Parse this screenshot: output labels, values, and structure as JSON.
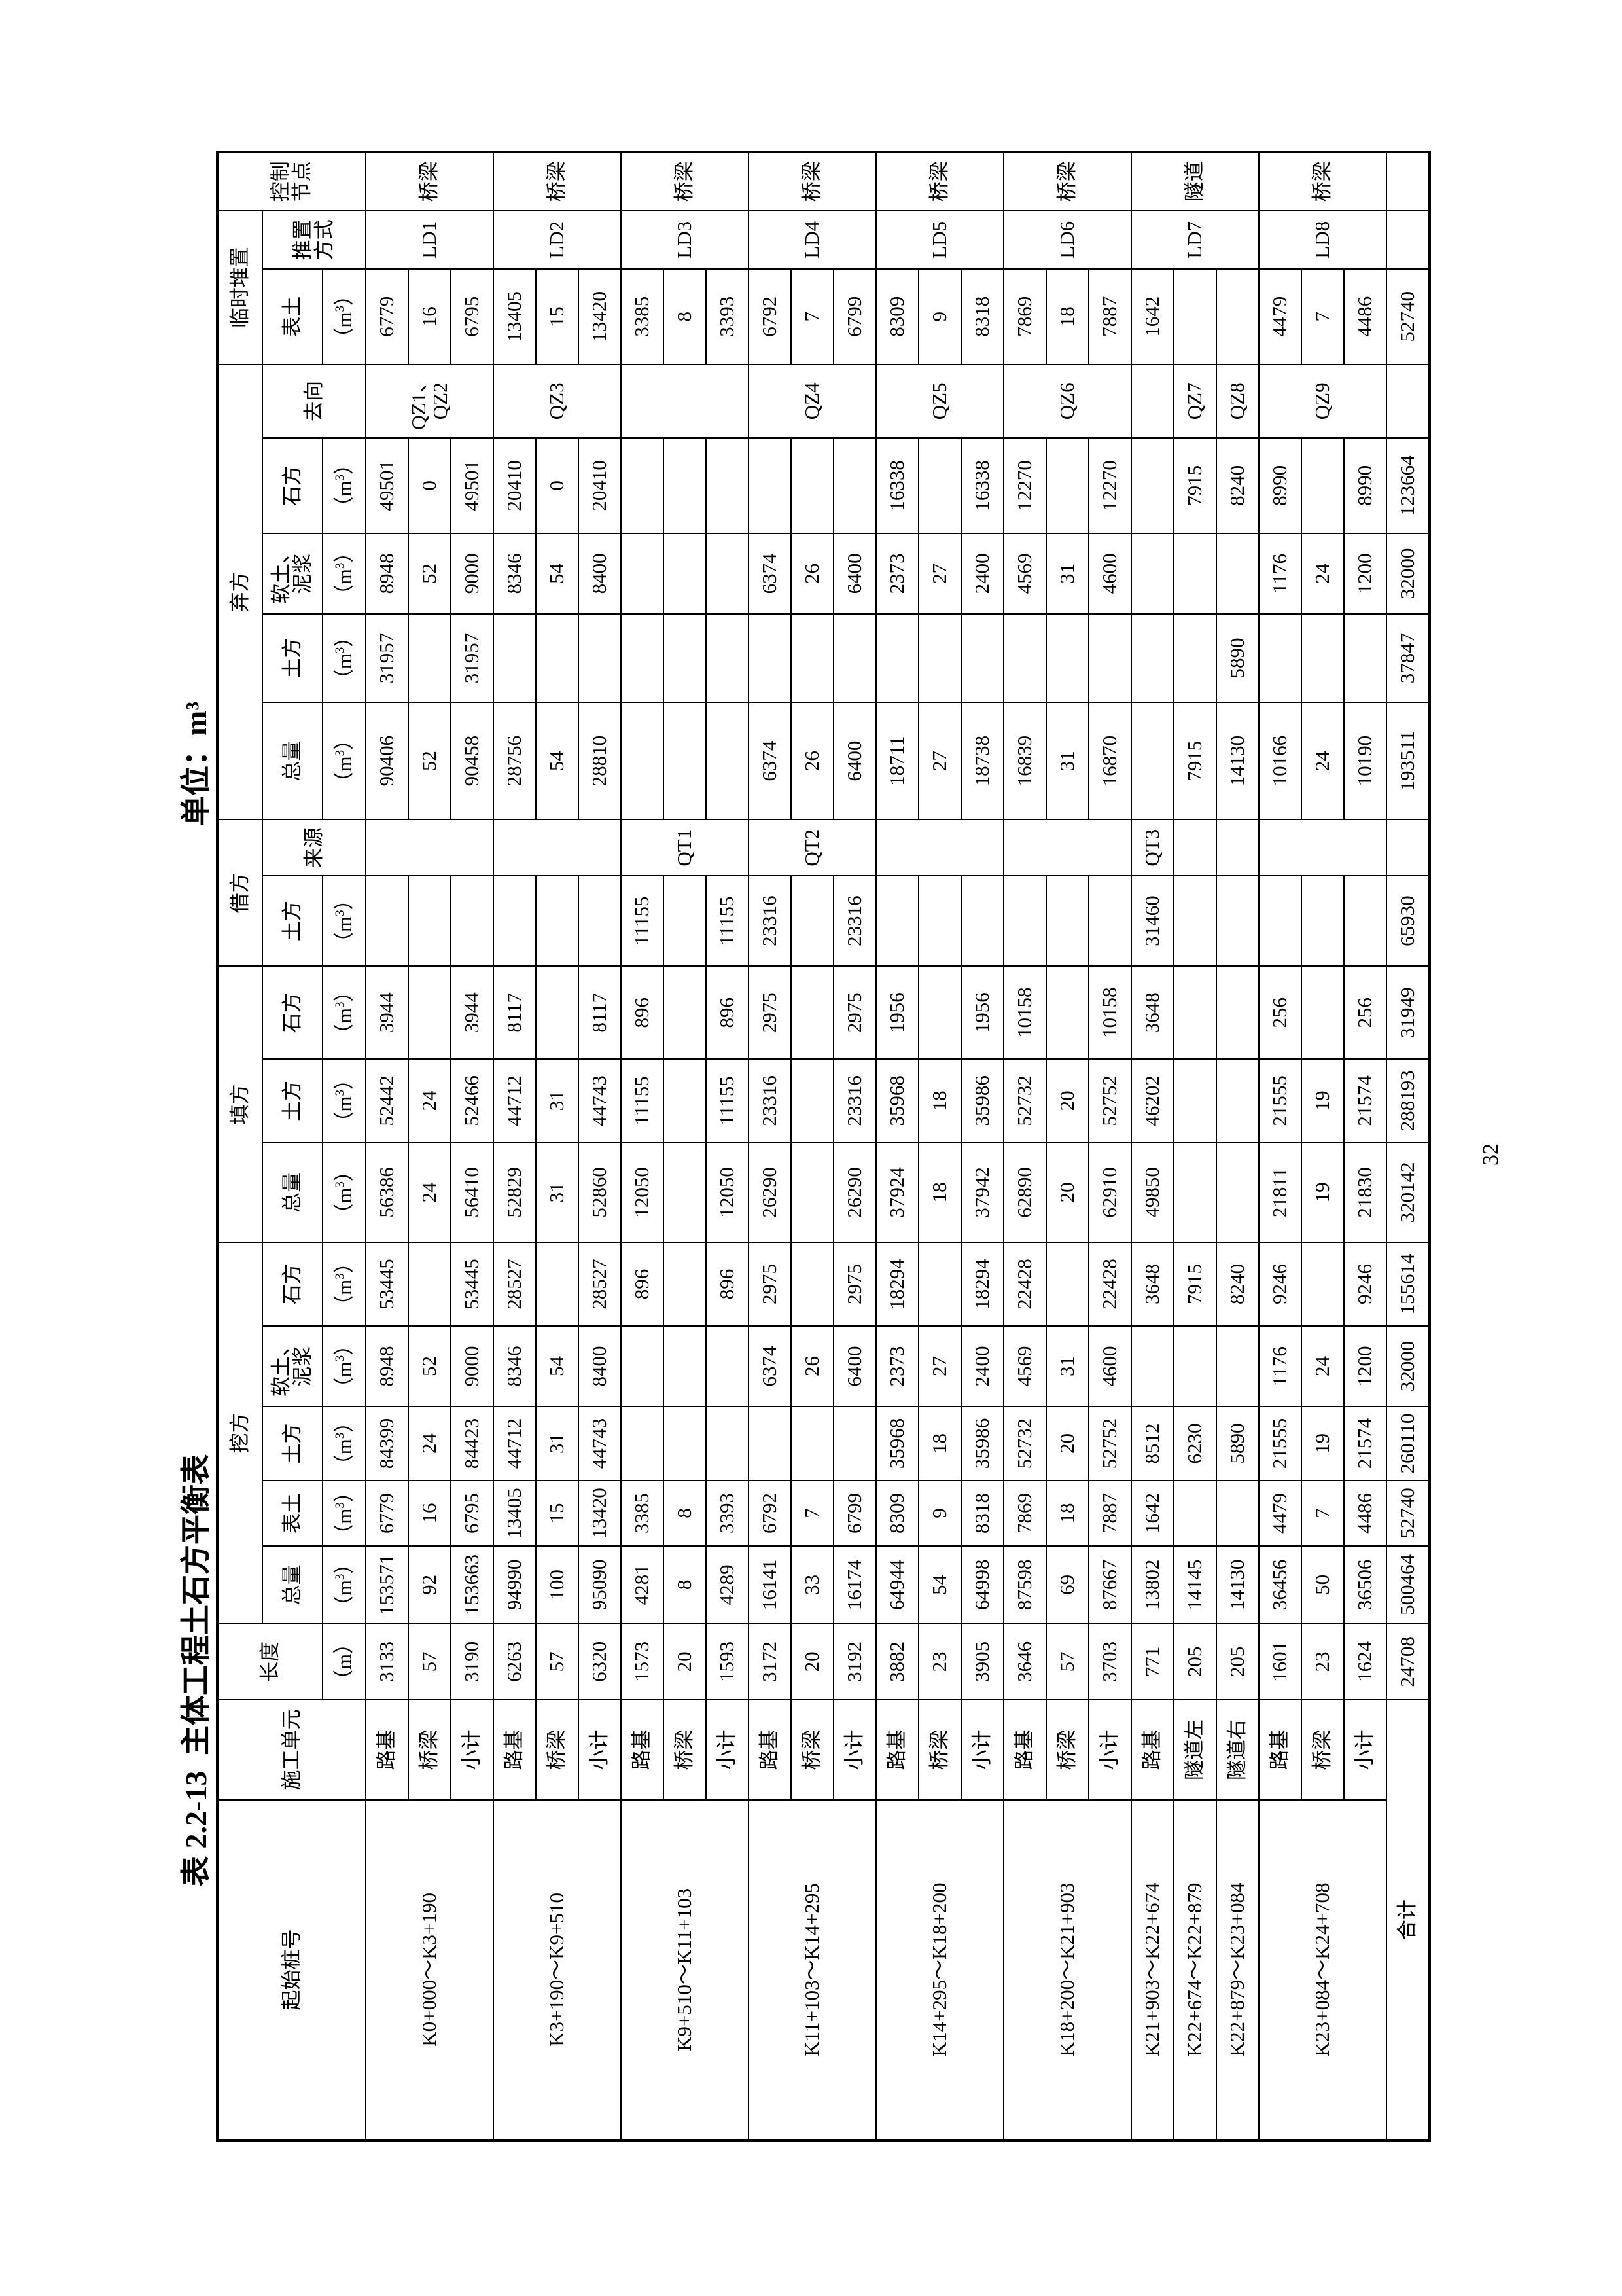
{
  "title": {
    "number": "表 2.2-13",
    "main": "主体工程土石方平衡表",
    "unit": "单位：m³"
  },
  "page_number": "32",
  "header": {
    "station": "起始桩号",
    "unit_col": "施工单元",
    "length": "长度",
    "length_unit": "（m）",
    "cut": "挖方",
    "fill": "填方",
    "borrow": "借方",
    "waste": "弃方",
    "temp": "临时堆置",
    "node": "控制节点",
    "total": "总量",
    "topsoil": "表土",
    "soil": "土方",
    "soft": "软土、泥浆",
    "rock": "石方",
    "source": "来源",
    "dest": "去向",
    "method": "推置方式",
    "vol_unit": "（m³）"
  },
  "blocks": [
    {
      "stations": [
        {
          "text": "K0+000～K3+190",
          "span": 3
        }
      ],
      "sources": [
        {
          "text": "",
          "span": 3
        }
      ],
      "dests": [
        {
          "text": "QZ1、QZ2",
          "span": 3
        }
      ],
      "method": "LD1",
      "node": "桥梁",
      "rows": [
        {
          "unit": "路基",
          "values": [
            "3133",
            "153571",
            "6779",
            "84399",
            "8948",
            "53445",
            "56386",
            "52442",
            "3944",
            "",
            "90406",
            "31957",
            "8948",
            "49501",
            "6779"
          ]
        },
        {
          "unit": "桥梁",
          "values": [
            "57",
            "92",
            "16",
            "24",
            "52",
            "",
            "24",
            "24",
            "",
            "",
            "52",
            "",
            "52",
            "0",
            "16"
          ]
        },
        {
          "unit": "小计",
          "values": [
            "3190",
            "153663",
            "6795",
            "84423",
            "9000",
            "53445",
            "56410",
            "52466",
            "3944",
            "",
            "90458",
            "31957",
            "9000",
            "49501",
            "6795"
          ]
        }
      ]
    },
    {
      "stations": [
        {
          "text": "K3+190～K9+510",
          "span": 3
        }
      ],
      "sources": [
        {
          "text": "",
          "span": 3
        }
      ],
      "dests": [
        {
          "text": "QZ3",
          "span": 3
        }
      ],
      "method": "LD2",
      "node": "桥梁",
      "rows": [
        {
          "unit": "路基",
          "values": [
            "6263",
            "94990",
            "13405",
            "44712",
            "8346",
            "28527",
            "52829",
            "44712",
            "8117",
            "",
            "28756",
            "",
            "8346",
            "20410",
            "13405"
          ]
        },
        {
          "unit": "桥梁",
          "values": [
            "57",
            "100",
            "15",
            "31",
            "54",
            "",
            "31",
            "31",
            "",
            "",
            "54",
            "",
            "54",
            "0",
            "15"
          ]
        },
        {
          "unit": "小计",
          "values": [
            "6320",
            "95090",
            "13420",
            "44743",
            "8400",
            "28527",
            "52860",
            "44743",
            "8117",
            "",
            "28810",
            "",
            "8400",
            "20410",
            "13420"
          ]
        }
      ]
    },
    {
      "stations": [
        {
          "text": "K9+510～K11+103",
          "span": 3
        }
      ],
      "sources": [
        {
          "text": "QT1",
          "span": 3
        }
      ],
      "dests": [
        {
          "text": "",
          "span": 3
        }
      ],
      "method": "LD3",
      "node": "桥梁",
      "rows": [
        {
          "unit": "路基",
          "values": [
            "1573",
            "4281",
            "3385",
            "",
            "",
            "896",
            "12050",
            "11155",
            "896",
            "11155",
            "",
            "",
            "",
            "",
            "3385"
          ]
        },
        {
          "unit": "桥梁",
          "values": [
            "20",
            "8",
            "8",
            "",
            "",
            "",
            "",
            "",
            "",
            "",
            "",
            "",
            "",
            "",
            "8"
          ]
        },
        {
          "unit": "小计",
          "values": [
            "1593",
            "4289",
            "3393",
            "",
            "",
            "896",
            "12050",
            "11155",
            "896",
            "11155",
            "",
            "",
            "",
            "",
            "3393"
          ]
        }
      ]
    },
    {
      "stations": [
        {
          "text": "K11+103～K14+295",
          "span": 3
        }
      ],
      "sources": [
        {
          "text": "QT2",
          "span": 3
        }
      ],
      "dests": [
        {
          "text": "QZ4",
          "span": 3
        }
      ],
      "method": "LD4",
      "node": "桥梁",
      "rows": [
        {
          "unit": "路基",
          "values": [
            "3172",
            "16141",
            "6792",
            "",
            "6374",
            "2975",
            "26290",
            "23316",
            "2975",
            "23316",
            "6374",
            "",
            "6374",
            "",
            "6792"
          ]
        },
        {
          "unit": "桥梁",
          "values": [
            "20",
            "33",
            "7",
            "",
            "26",
            "",
            "",
            "",
            "",
            "",
            "26",
            "",
            "26",
            "",
            "7"
          ]
        },
        {
          "unit": "小计",
          "values": [
            "3192",
            "16174",
            "6799",
            "",
            "6400",
            "2975",
            "26290",
            "23316",
            "2975",
            "23316",
            "6400",
            "",
            "6400",
            "",
            "6799"
          ]
        }
      ]
    },
    {
      "stations": [
        {
          "text": "K14+295～K18+200",
          "span": 3
        }
      ],
      "sources": [
        {
          "text": "",
          "span": 3
        }
      ],
      "dests": [
        {
          "text": "QZ5",
          "span": 3
        }
      ],
      "method": "LD5",
      "node": "桥梁",
      "rows": [
        {
          "unit": "路基",
          "values": [
            "3882",
            "64944",
            "8309",
            "35968",
            "2373",
            "18294",
            "37924",
            "35968",
            "1956",
            "",
            "18711",
            "",
            "2373",
            "16338",
            "8309"
          ]
        },
        {
          "unit": "桥梁",
          "values": [
            "23",
            "54",
            "9",
            "18",
            "27",
            "",
            "18",
            "18",
            "",
            "",
            "27",
            "",
            "27",
            "",
            "9"
          ]
        },
        {
          "unit": "小计",
          "values": [
            "3905",
            "64998",
            "8318",
            "35986",
            "2400",
            "18294",
            "37942",
            "35986",
            "1956",
            "",
            "18738",
            "",
            "2400",
            "16338",
            "8318"
          ]
        }
      ]
    },
    {
      "stations": [
        {
          "text": "K18+200～K21+903",
          "span": 3
        }
      ],
      "sources": [
        {
          "text": "",
          "span": 3
        }
      ],
      "dests": [
        {
          "text": "QZ6",
          "span": 3
        }
      ],
      "method": "LD6",
      "node": "桥梁",
      "rows": [
        {
          "unit": "路基",
          "values": [
            "3646",
            "87598",
            "7869",
            "52732",
            "4569",
            "22428",
            "62890",
            "52732",
            "10158",
            "",
            "16839",
            "",
            "4569",
            "12270",
            "7869"
          ]
        },
        {
          "unit": "桥梁",
          "values": [
            "57",
            "69",
            "18",
            "20",
            "31",
            "",
            "20",
            "20",
            "",
            "",
            "31",
            "",
            "31",
            "",
            "18"
          ]
        },
        {
          "unit": "小计",
          "values": [
            "3703",
            "87667",
            "7887",
            "52752",
            "4600",
            "22428",
            "62910",
            "52752",
            "10158",
            "",
            "16870",
            "",
            "4600",
            "12270",
            "7887"
          ]
        }
      ]
    },
    {
      "stations": [
        {
          "text": "K21+903～K22+674",
          "span": 1
        },
        {
          "text": "K22+674～K22+879",
          "span": 1
        },
        {
          "text": "K22+879～K23+084",
          "span": 1
        }
      ],
      "sources": [
        {
          "text": "QT3",
          "span": 1
        },
        {
          "text": "",
          "span": 1
        },
        {
          "text": "",
          "span": 1
        }
      ],
      "dests": [
        {
          "text": "",
          "span": 1
        },
        {
          "text": "QZ7",
          "span": 1
        },
        {
          "text": "QZ8",
          "span": 1
        }
      ],
      "method": "LD7",
      "node": "隧道",
      "rows": [
        {
          "unit": "路基",
          "values": [
            "771",
            "13802",
            "1642",
            "8512",
            "",
            "3648",
            "49850",
            "46202",
            "3648",
            "31460",
            "",
            "",
            "",
            "",
            "1642"
          ]
        },
        {
          "unit": "隧道左",
          "values": [
            "205",
            "14145",
            "",
            "6230",
            "",
            "7915",
            "",
            "",
            "",
            "",
            "7915",
            "",
            "",
            "7915",
            ""
          ]
        },
        {
          "unit": "隧道右",
          "values": [
            "205",
            "14130",
            "",
            "5890",
            "",
            "8240",
            "",
            "",
            "",
            "",
            "14130",
            "5890",
            "",
            "8240",
            ""
          ]
        }
      ]
    },
    {
      "stations": [
        {
          "text": "K23+084～K24+708",
          "span": 3
        }
      ],
      "sources": [
        {
          "text": "",
          "span": 3
        }
      ],
      "dests": [
        {
          "text": "QZ9",
          "span": 3
        }
      ],
      "method": "LD8",
      "node": "桥梁",
      "rows": [
        {
          "unit": "路基",
          "values": [
            "1601",
            "36456",
            "4479",
            "21555",
            "1176",
            "9246",
            "21811",
            "21555",
            "256",
            "",
            "10166",
            "",
            "1176",
            "8990",
            "4479"
          ]
        },
        {
          "unit": "桥梁",
          "values": [
            "23",
            "50",
            "7",
            "19",
            "24",
            "",
            "19",
            "19",
            "",
            "",
            "24",
            "",
            "24",
            "",
            "7"
          ]
        },
        {
          "unit": "小计",
          "values": [
            "1624",
            "36506",
            "4486",
            "21574",
            "1200",
            "9246",
            "21830",
            "21574",
            "256",
            "",
            "10190",
            "",
            "1200",
            "8990",
            "4486"
          ]
        }
      ]
    }
  ],
  "total": {
    "label": "合计",
    "values": [
      "24708",
      "500464",
      "52740",
      "260110",
      "32000",
      "155614",
      "320142",
      "288193",
      "31949",
      "65930",
      "193511",
      "37847",
      "32000",
      "123664",
      "52740"
    ]
  }
}
